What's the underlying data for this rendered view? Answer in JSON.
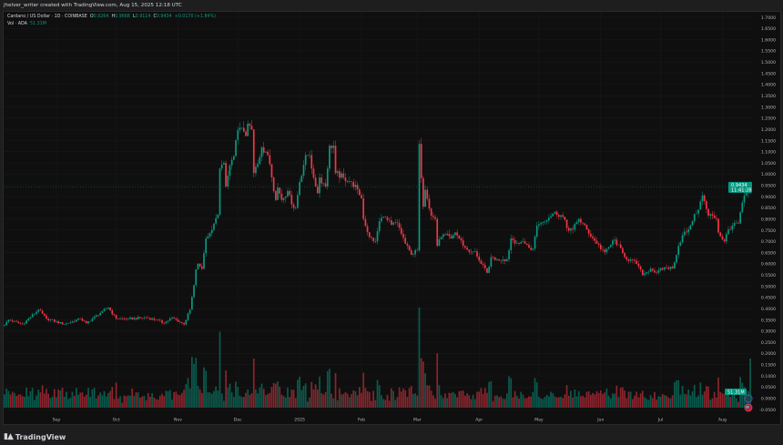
{
  "header": {
    "caption": "jhelver_writer created with TradingView.com, Aug 15, 2025 12:18 UTC"
  },
  "legend": {
    "symbol": "Cardano / US Dollar · 1D · COINBASE",
    "open_label": "O",
    "open": "0.9264",
    "high_label": "H",
    "high": "0.9668",
    "low_label": "L",
    "low": "0.9114",
    "close_label": "C",
    "close": "0.9434",
    "change": "+0.0170 (+1.84%)",
    "volume_label": "Vol · ADA",
    "volume": "51.31M"
  },
  "footer": {
    "logo_text": "TradingView",
    "logo_mark": "17"
  },
  "colors": {
    "up": "#089981",
    "down": "#f23645",
    "background": "#0f0f0f",
    "grid": "#1a1a1a",
    "text": "#d1d4dc"
  },
  "chart_data": {
    "type": "candlestick",
    "interval": "1D",
    "title": "Cardano / US Dollar · 1D · COINBASE",
    "ylim": [
      -0.05,
      1.7
    ],
    "y_ticks": [
      "1.7000",
      "1.6500",
      "1.6000",
      "1.5500",
      "1.5000",
      "1.4500",
      "1.4000",
      "1.3500",
      "1.3000",
      "1.2500",
      "1.2000",
      "1.1500",
      "1.1000",
      "1.0500",
      "1.0000",
      "0.9500",
      "0.9000",
      "0.8500",
      "0.8000",
      "0.7500",
      "0.7000",
      "0.6500",
      "0.6000",
      "0.5500",
      "0.5000",
      "0.4500",
      "0.4000",
      "0.3500",
      "0.3000",
      "0.2500",
      "0.2000",
      "0.1500",
      "0.1000",
      "0.0500",
      "0.0000",
      "-0.0500"
    ],
    "x_ticks": [
      [
        "Sep",
        "2024-09-01"
      ],
      [
        "Oct",
        "2024-10-01"
      ],
      [
        "Nov",
        "2024-11-01"
      ],
      [
        "Dec",
        "2024-12-01"
      ],
      [
        "2025",
        "2025-01-01"
      ],
      [
        "Feb",
        "2025-02-01"
      ],
      [
        "Mar",
        "2025-03-01"
      ],
      [
        "Apr",
        "2025-04-01"
      ],
      [
        "May",
        "2025-05-01"
      ],
      [
        "Jun",
        "2025-06-01"
      ],
      [
        "Jul",
        "2025-07-01"
      ],
      [
        "Aug",
        "2025-08-01"
      ]
    ],
    "last_price": {
      "value": 0.9434,
      "label": "0.9434",
      "countdown": "11:41:28"
    },
    "last_volume": {
      "label": "51.31M"
    },
    "grid": true,
    "close_path": [
      [
        "2024-08-06",
        0.327
      ],
      [
        "2024-08-08",
        0.35
      ],
      [
        "2024-08-15",
        0.33
      ],
      [
        "2024-08-23",
        0.395
      ],
      [
        "2024-08-27",
        0.355
      ],
      [
        "2024-09-05",
        0.33
      ],
      [
        "2024-09-13",
        0.355
      ],
      [
        "2024-09-16",
        0.335
      ],
      [
        "2024-09-24",
        0.388
      ],
      [
        "2024-09-27",
        0.405
      ],
      [
        "2024-10-01",
        0.355
      ],
      [
        "2024-10-07",
        0.355
      ],
      [
        "2024-10-16",
        0.36
      ],
      [
        "2024-10-21",
        0.35
      ],
      [
        "2024-10-25",
        0.335
      ],
      [
        "2024-10-29",
        0.36
      ],
      [
        "2024-11-04",
        0.33
      ],
      [
        "2024-11-07",
        0.395
      ],
      [
        "2024-11-09",
        0.505
      ],
      [
        "2024-11-10",
        0.575
      ],
      [
        "2024-11-11",
        0.6
      ],
      [
        "2024-11-13",
        0.578
      ],
      [
        "2024-11-15",
        0.713
      ],
      [
        "2024-11-17",
        0.737
      ],
      [
        "2024-11-19",
        0.78
      ],
      [
        "2024-11-21",
        0.82
      ],
      [
        "2024-11-22",
        1.025
      ],
      [
        "2024-11-24",
        1.05
      ],
      [
        "2024-11-25",
        0.945
      ],
      [
        "2024-11-27",
        1.04
      ],
      [
        "2024-11-29",
        1.08
      ],
      [
        "2024-12-01",
        1.197
      ],
      [
        "2024-12-04",
        1.19
      ],
      [
        "2024-12-05",
        1.17
      ],
      [
        "2024-12-06",
        1.225
      ],
      [
        "2024-12-08",
        1.2
      ],
      [
        "2024-12-09",
        1.005
      ],
      [
        "2024-12-11",
        1.045
      ],
      [
        "2024-12-13",
        1.12
      ],
      [
        "2024-12-15",
        1.1
      ],
      [
        "2024-12-17",
        1.045
      ],
      [
        "2024-12-20",
        0.885
      ],
      [
        "2024-12-21",
        0.94
      ],
      [
        "2024-12-23",
        0.885
      ],
      [
        "2024-12-26",
        0.925
      ],
      [
        "2024-12-28",
        0.865
      ],
      [
        "2024-12-30",
        0.85
      ],
      [
        "2025-01-01",
        0.965
      ],
      [
        "2025-01-04",
        1.085
      ],
      [
        "2025-01-06",
        1.085
      ],
      [
        "2025-01-08",
        0.985
      ],
      [
        "2025-01-10",
        0.915
      ],
      [
        "2025-01-11",
        0.985
      ],
      [
        "2025-01-14",
        0.945
      ],
      [
        "2025-01-16",
        1.127
      ],
      [
        "2025-01-18",
        1.127
      ],
      [
        "2025-01-19",
        1.005
      ],
      [
        "2025-01-23",
        0.985
      ],
      [
        "2025-01-27",
        0.965
      ],
      [
        "2025-01-30",
        0.932
      ],
      [
        "2025-02-01",
        0.892
      ],
      [
        "2025-02-02",
        0.8
      ],
      [
        "2025-02-05",
        0.72
      ],
      [
        "2025-02-08",
        0.7
      ],
      [
        "2025-02-10",
        0.79
      ],
      [
        "2025-02-12",
        0.81
      ],
      [
        "2025-02-16",
        0.775
      ],
      [
        "2025-02-19",
        0.782
      ],
      [
        "2025-02-23",
        0.69
      ],
      [
        "2025-02-26",
        0.64
      ],
      [
        "2025-03-01",
        0.66
      ],
      [
        "2025-03-02",
        1.135
      ],
      [
        "2025-03-04",
        0.855
      ],
      [
        "2025-03-05",
        0.93
      ],
      [
        "2025-03-06",
        0.89
      ],
      [
        "2025-03-08",
        0.815
      ],
      [
        "2025-03-10",
        0.8
      ],
      [
        "2025-03-11",
        0.68
      ],
      [
        "2025-03-13",
        0.72
      ],
      [
        "2025-03-15",
        0.728
      ],
      [
        "2025-03-18",
        0.713
      ],
      [
        "2025-03-20",
        0.74
      ],
      [
        "2025-03-22",
        0.713
      ],
      [
        "2025-03-25",
        0.672
      ],
      [
        "2025-03-28",
        0.652
      ],
      [
        "2025-03-30",
        0.656
      ],
      [
        "2025-04-02",
        0.6
      ],
      [
        "2025-04-05",
        0.56
      ],
      [
        "2025-04-07",
        0.63
      ],
      [
        "2025-04-10",
        0.62
      ],
      [
        "2025-04-13",
        0.62
      ],
      [
        "2025-04-15",
        0.62
      ],
      [
        "2025-04-17",
        0.713
      ],
      [
        "2025-04-21",
        0.69
      ],
      [
        "2025-04-23",
        0.7
      ],
      [
        "2025-04-26",
        0.672
      ],
      [
        "2025-04-28",
        0.668
      ],
      [
        "2025-04-30",
        0.77
      ],
      [
        "2025-05-02",
        0.782
      ],
      [
        "2025-05-09",
        0.832
      ],
      [
        "2025-05-13",
        0.81
      ],
      [
        "2025-05-15",
        0.76
      ],
      [
        "2025-05-18",
        0.753
      ],
      [
        "2025-05-21",
        0.8
      ],
      [
        "2025-05-25",
        0.753
      ],
      [
        "2025-05-30",
        0.69
      ],
      [
        "2025-06-03",
        0.652
      ],
      [
        "2025-06-08",
        0.708
      ],
      [
        "2025-06-13",
        0.63
      ],
      [
        "2025-06-19",
        0.6
      ],
      [
        "2025-06-22",
        0.55
      ],
      [
        "2025-06-26",
        0.578
      ],
      [
        "2025-06-29",
        0.56
      ],
      [
        "2025-07-03",
        0.585
      ],
      [
        "2025-07-07",
        0.58
      ],
      [
        "2025-07-10",
        0.68
      ],
      [
        "2025-07-12",
        0.728
      ],
      [
        "2025-07-15",
        0.753
      ],
      [
        "2025-07-18",
        0.822
      ],
      [
        "2025-07-20",
        0.842
      ],
      [
        "2025-07-22",
        0.905
      ],
      [
        "2025-07-25",
        0.815
      ],
      [
        "2025-07-27",
        0.815
      ],
      [
        "2025-07-29",
        0.8
      ],
      [
        "2025-07-30",
        0.74
      ],
      [
        "2025-08-02",
        0.7
      ],
      [
        "2025-08-04",
        0.753
      ],
      [
        "2025-08-07",
        0.782
      ],
      [
        "2025-08-09",
        0.78
      ],
      [
        "2025-08-12",
        0.905
      ],
      [
        "2025-08-14",
        0.9264
      ],
      [
        "2025-08-15",
        0.9434
      ]
    ]
  }
}
